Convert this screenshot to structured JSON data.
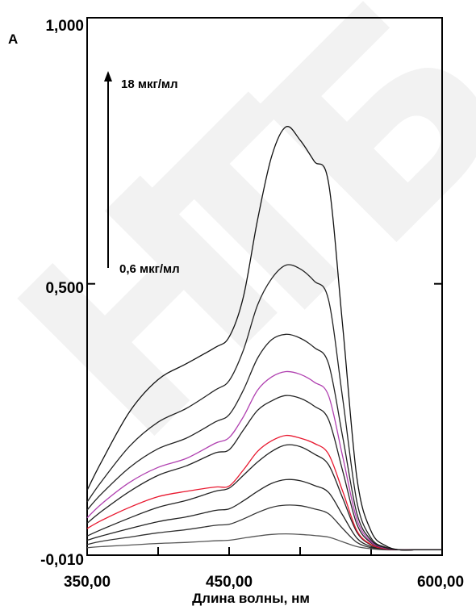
{
  "chart_data": {
    "type": "line",
    "ylabel": "A",
    "xlabel": "Длина волны, нм",
    "xlim": [
      350,
      600
    ],
    "ylim": [
      -0.01,
      1.0
    ],
    "x_ticks": [
      {
        "value": 350,
        "label": "350,00"
      },
      {
        "value": 450,
        "label": "450,00"
      },
      {
        "value": 600,
        "label": "600,00"
      }
    ],
    "y_ticks": [
      {
        "value": -0.01,
        "label": "-0,010"
      },
      {
        "value": 0.5,
        "label": "0,500"
      },
      {
        "value": 1.0,
        "label": "1,000"
      }
    ],
    "x": [
      350,
      360,
      380,
      400,
      420,
      440,
      450,
      460,
      470,
      480,
      490,
      500,
      510,
      520,
      530,
      540,
      550,
      560,
      570,
      580,
      590,
      600
    ],
    "series": [
      {
        "color": "#555555",
        "values": [
          0.004,
          0.006,
          0.009,
          0.012,
          0.014,
          0.017,
          0.018,
          0.022,
          0.026,
          0.029,
          0.03,
          0.029,
          0.027,
          0.024,
          0.015,
          0.006,
          0.002,
          0.0,
          0.0,
          0.0,
          0.0,
          0.0
        ]
      },
      {
        "color": "#333333",
        "values": [
          0.01,
          0.016,
          0.024,
          0.032,
          0.038,
          0.046,
          0.048,
          0.058,
          0.07,
          0.08,
          0.084,
          0.083,
          0.077,
          0.068,
          0.04,
          0.014,
          0.004,
          0.001,
          0.0,
          0.0,
          0.0,
          0.0
        ]
      },
      {
        "color": "#222222",
        "values": [
          0.018,
          0.026,
          0.04,
          0.053,
          0.062,
          0.074,
          0.077,
          0.092,
          0.11,
          0.125,
          0.132,
          0.13,
          0.121,
          0.108,
          0.065,
          0.022,
          0.006,
          0.001,
          0.0,
          0.0,
          0.0,
          0.0
        ]
      },
      {
        "color": "#222222",
        "values": [
          0.026,
          0.038,
          0.06,
          0.08,
          0.093,
          0.11,
          0.116,
          0.14,
          0.165,
          0.185,
          0.197,
          0.194,
          0.18,
          0.16,
          0.097,
          0.033,
          0.009,
          0.002,
          0.0,
          0.0,
          0.0,
          0.0
        ]
      },
      {
        "color": "#e8182f",
        "values": [
          0.04,
          0.055,
          0.08,
          0.1,
          0.11,
          0.118,
          0.12,
          0.15,
          0.185,
          0.205,
          0.215,
          0.21,
          0.2,
          0.18,
          0.11,
          0.036,
          0.01,
          0.002,
          0.0,
          0.0,
          0.0,
          0.0
        ]
      },
      {
        "color": "#222222",
        "values": [
          0.05,
          0.072,
          0.11,
          0.14,
          0.158,
          0.182,
          0.188,
          0.225,
          0.262,
          0.28,
          0.29,
          0.285,
          0.27,
          0.245,
          0.148,
          0.048,
          0.013,
          0.003,
          0.0,
          0.0,
          0.0,
          0.0
        ]
      },
      {
        "color": "#b040b0",
        "values": [
          0.06,
          0.086,
          0.127,
          0.155,
          0.172,
          0.2,
          0.211,
          0.25,
          0.3,
          0.325,
          0.335,
          0.33,
          0.315,
          0.29,
          0.175,
          0.057,
          0.015,
          0.003,
          0.0,
          0.0,
          0.0,
          0.0
        ]
      },
      {
        "color": "#222222",
        "values": [
          0.075,
          0.105,
          0.155,
          0.19,
          0.21,
          0.24,
          0.254,
          0.3,
          0.36,
          0.395,
          0.405,
          0.398,
          0.38,
          0.35,
          0.212,
          0.068,
          0.018,
          0.004,
          0.0,
          0.0,
          0.0,
          0.0
        ]
      },
      {
        "color": "#222222",
        "values": [
          0.09,
          0.128,
          0.195,
          0.24,
          0.266,
          0.3,
          0.318,
          0.375,
          0.46,
          0.51,
          0.535,
          0.528,
          0.505,
          0.47,
          0.284,
          0.09,
          0.022,
          0.005,
          0.0,
          0.0,
          0.0,
          0.0
        ]
      },
      {
        "color": "#111111",
        "values": [
          0.112,
          0.165,
          0.26,
          0.32,
          0.35,
          0.38,
          0.4,
          0.475,
          0.62,
          0.74,
          0.795,
          0.77,
          0.73,
          0.69,
          0.42,
          0.135,
          0.035,
          0.008,
          0.0,
          0.0,
          0.0,
          0.0
        ]
      }
    ],
    "annotations": [
      {
        "text": "18 мкг/мл"
      },
      {
        "text": "0,6 мкг/мл"
      }
    ],
    "grid": false,
    "legend": "none"
  },
  "watermark": {
    "text": "НТБО"
  }
}
